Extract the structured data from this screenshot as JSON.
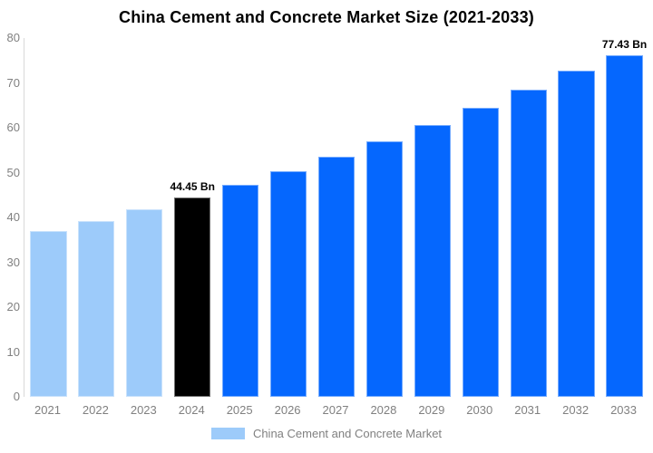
{
  "title": "China Cement and Concrete Market Size (2021-2033)",
  "chart_data": {
    "type": "bar",
    "title": "China Cement and Concrete Market Size (2021-2033)",
    "categories": [
      "2021",
      "2022",
      "2023",
      "2024",
      "2025",
      "2026",
      "2027",
      "2028",
      "2029",
      "2030",
      "2031",
      "2032",
      "2033"
    ],
    "values": [
      36.94,
      39.29,
      41.79,
      44.45,
      47.28,
      50.29,
      53.49,
      56.89,
      60.51,
      64.36,
      68.45,
      72.81,
      77.43
    ],
    "unit": "Bn",
    "bar_colors": [
      "#9DCBFA",
      "#9DCBFA",
      "#9DCBFA",
      "#000000",
      "#0567FE",
      "#0567FE",
      "#0567FE",
      "#0567FE",
      "#0567FE",
      "#0567FE",
      "#0567FE",
      "#0567FE",
      "#0567FE"
    ],
    "data_labels": [
      {
        "index": 3,
        "text": "44.45 Bn"
      },
      {
        "index": 12,
        "text": "77.43 Bn"
      }
    ],
    "xlabel": "",
    "ylabel": "",
    "ylim": [
      0,
      80
    ],
    "yticks": [
      0,
      10,
      20,
      30,
      40,
      50,
      60,
      70,
      80
    ],
    "grid": false,
    "legend_position": "bottom"
  },
  "legend": {
    "label": "China Cement and Concrete Market",
    "swatch_color": "#9DCBFA"
  },
  "colors": {
    "background": "#FFFFFF",
    "axis_line": "#D9D9D9",
    "tick_label_text": "#808080",
    "title_text": "#000000",
    "annotation_text": "#000000",
    "historical_bar": "#9DCBFA",
    "highlight_bar": "#000000",
    "forecast_bar": "#0567FE"
  }
}
